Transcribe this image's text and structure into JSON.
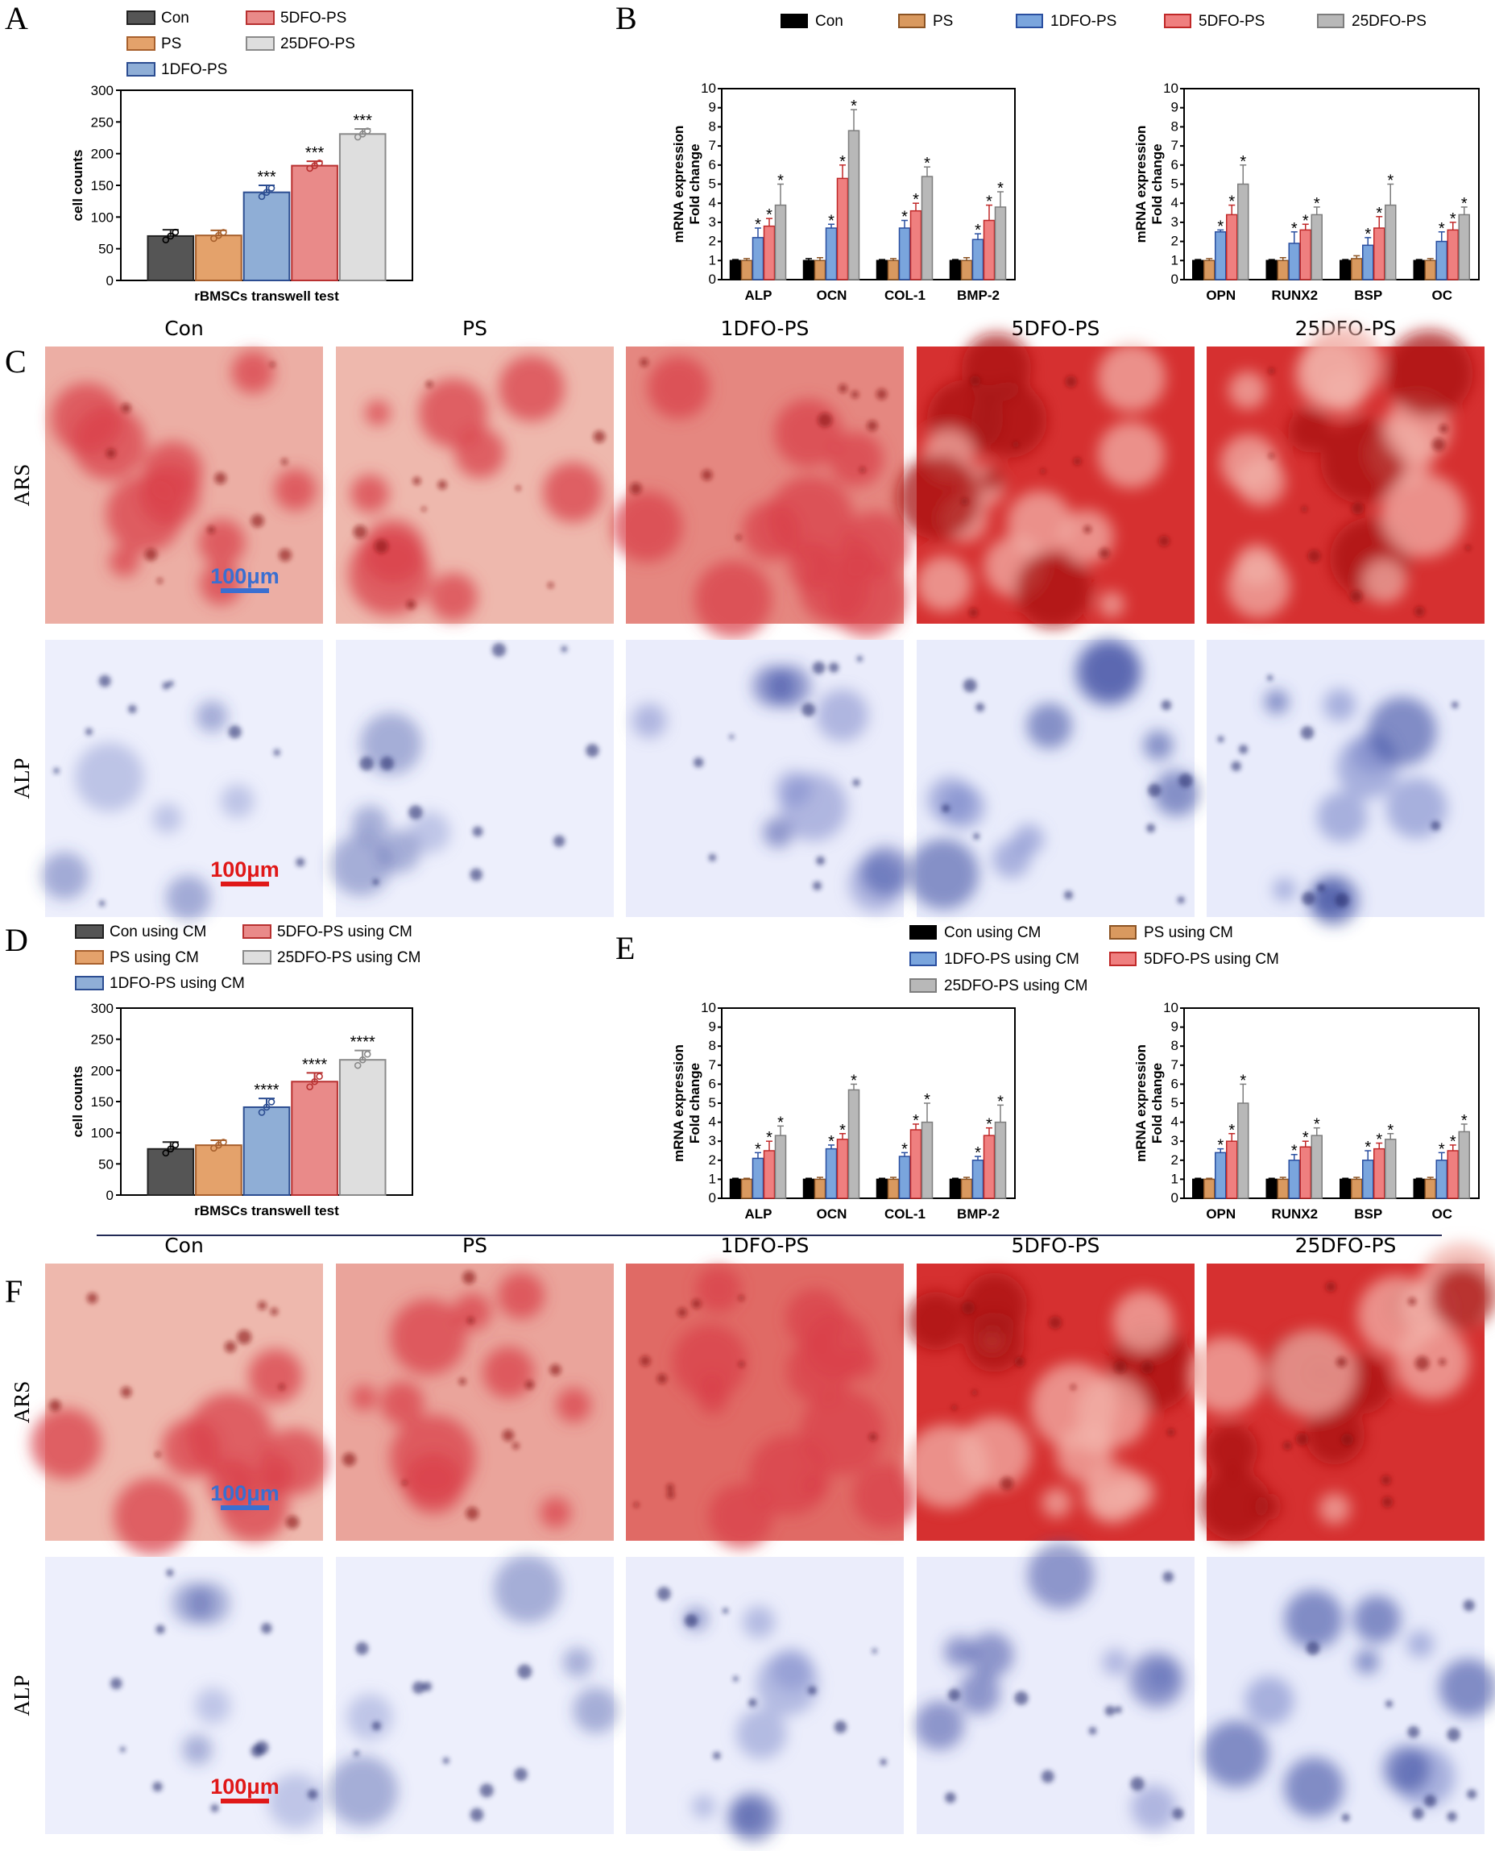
{
  "panels": {
    "A": "A",
    "B": "B",
    "C": "C",
    "D": "D",
    "E": "E",
    "F": "F"
  },
  "colors": {
    "Con": "#555555",
    "PS": "#e4a26b",
    "1DFO-PS": "#8faed6",
    "5DFO-PS": "#e98a89",
    "25DFO-PS": "#dedede",
    "qpcr_Con": "#000000",
    "qpcr_PS": "#d9995f",
    "qpcr_1DFO-PS": "#7aa5dd",
    "qpcr_5DFO-PS": "#ef7f7f",
    "qpcr_25DFO-PS": "#b8b8b8",
    "ars_stain": "#d63a3a",
    "alp_stain": "#2e3f8f",
    "scale_blue": "#3a6fd1",
    "scale_red": "#e01818"
  },
  "chart_data": [
    {
      "id": "A",
      "type": "bar",
      "categories": [
        "Con",
        "PS",
        "1DFO-PS",
        "5DFO-PS",
        "25DFO-PS"
      ],
      "values": [
        70,
        71,
        139,
        181,
        231
      ],
      "errors": [
        10,
        8,
        11,
        7,
        8
      ],
      "annotations": [
        "",
        "",
        "***",
        "***",
        "***"
      ],
      "xlabel": "rBMSCs transwell test",
      "ylabel": "cell counts",
      "ylim": [
        0,
        300
      ],
      "yticks": [
        0,
        50,
        100,
        150,
        200,
        250,
        300
      ],
      "legend": [
        "Con",
        "PS",
        "1DFO-PS",
        "5DFO-PS",
        "25DFO-PS"
      ]
    },
    {
      "id": "B-left",
      "type": "bar",
      "categories": [
        "ALP",
        "OCN",
        "COL-1",
        "BMP-2"
      ],
      "series": [
        {
          "name": "Con",
          "values": [
            1.0,
            1.0,
            1.0,
            1.0
          ]
        },
        {
          "name": "PS",
          "values": [
            1.0,
            1.0,
            1.0,
            1.0
          ]
        },
        {
          "name": "1DFO-PS",
          "values": [
            2.2,
            2.7,
            2.7,
            2.1
          ]
        },
        {
          "name": "5DFO-PS",
          "values": [
            2.8,
            5.3,
            3.6,
            3.1
          ]
        },
        {
          "name": "25DFO-PS",
          "values": [
            3.9,
            7.8,
            5.4,
            3.8
          ]
        }
      ],
      "errors": [
        [
          0.05,
          0.1,
          0.05,
          0.05
        ],
        [
          0.1,
          0.15,
          0.1,
          0.15
        ],
        [
          0.5,
          0.2,
          0.4,
          0.3
        ],
        [
          0.4,
          0.7,
          0.4,
          0.8
        ],
        [
          1.1,
          1.1,
          0.5,
          0.8
        ]
      ],
      "annotations": [
        "*",
        "*",
        "*",
        "*"
      ],
      "ylabel": "mRNA expression\nFold change",
      "ylim": [
        0,
        10
      ]
    },
    {
      "id": "B-right",
      "type": "bar",
      "categories": [
        "OPN",
        "RUNX2",
        "BSP",
        "OC"
      ],
      "series": [
        {
          "name": "Con",
          "values": [
            1.0,
            1.0,
            1.0,
            1.0
          ]
        },
        {
          "name": "PS",
          "values": [
            1.0,
            1.0,
            1.1,
            1.0
          ]
        },
        {
          "name": "1DFO-PS",
          "values": [
            2.5,
            1.9,
            1.8,
            2.0
          ]
        },
        {
          "name": "5DFO-PS",
          "values": [
            3.4,
            2.6,
            2.7,
            2.6
          ]
        },
        {
          "name": "25DFO-PS",
          "values": [
            5.0,
            3.4,
            3.9,
            3.4
          ]
        }
      ],
      "errors": [
        [
          0.05,
          0.05,
          0.05,
          0.05
        ],
        [
          0.1,
          0.15,
          0.15,
          0.1
        ],
        [
          0.1,
          0.6,
          0.4,
          0.5
        ],
        [
          0.5,
          0.3,
          0.6,
          0.4
        ],
        [
          1.0,
          0.4,
          1.1,
          0.4
        ]
      ],
      "annotations": [
        "*",
        "*",
        "*",
        "*"
      ],
      "ylabel": "mRNA expression\nFold change",
      "ylim": [
        0,
        10
      ]
    },
    {
      "id": "D",
      "type": "bar",
      "categories": [
        "Con using CM",
        "PS using CM",
        "1DFO-PS using CM",
        "5DFO-PS using CM",
        "25DFO-PS using CM"
      ],
      "values": [
        74,
        80,
        141,
        182,
        217
      ],
      "errors": [
        11,
        8,
        14,
        14,
        15
      ],
      "annotations": [
        "",
        "",
        "****",
        "****",
        "****"
      ],
      "xlabel": "rBMSCs transwell test",
      "ylabel": "cell counts",
      "ylim": [
        0,
        300
      ],
      "yticks": [
        0,
        50,
        100,
        150,
        200,
        250,
        300
      ],
      "legend": [
        "Con using CM",
        "PS using CM",
        "1DFO-PS using CM",
        "5DFO-PS using CM",
        "25DFO-PS using CM"
      ]
    },
    {
      "id": "E-left",
      "type": "bar",
      "categories": [
        "ALP",
        "OCN",
        "COL-1",
        "BMP-2"
      ],
      "series": [
        {
          "name": "Con using CM",
          "values": [
            1.0,
            1.0,
            1.0,
            1.0
          ]
        },
        {
          "name": "PS using CM",
          "values": [
            1.0,
            1.0,
            1.0,
            1.0
          ]
        },
        {
          "name": "1DFO-PS using CM",
          "values": [
            2.1,
            2.6,
            2.2,
            2.0
          ]
        },
        {
          "name": "5DFO-PS using CM",
          "values": [
            2.5,
            3.1,
            3.6,
            3.3
          ]
        },
        {
          "name": "25DFO-PS using CM",
          "values": [
            3.3,
            5.7,
            4.0,
            4.0
          ]
        }
      ],
      "errors": [
        [
          0.05,
          0.05,
          0.05,
          0.05
        ],
        [
          0.05,
          0.1,
          0.1,
          0.1
        ],
        [
          0.3,
          0.2,
          0.2,
          0.2
        ],
        [
          0.5,
          0.3,
          0.3,
          0.4
        ],
        [
          0.5,
          0.3,
          1.0,
          0.9
        ]
      ],
      "annotations": [
        "*",
        "*",
        "*",
        "*"
      ],
      "ylabel": "mRNA expression\nFold change",
      "ylim": [
        0,
        10
      ]
    },
    {
      "id": "E-right",
      "type": "bar",
      "categories": [
        "OPN",
        "RUNX2",
        "BSP",
        "OC"
      ],
      "series": [
        {
          "name": "Con using CM",
          "values": [
            1.0,
            1.0,
            1.0,
            1.0
          ]
        },
        {
          "name": "PS using CM",
          "values": [
            1.0,
            1.0,
            1.0,
            1.0
          ]
        },
        {
          "name": "1DFO-PS using CM",
          "values": [
            2.4,
            2.0,
            2.0,
            2.0
          ]
        },
        {
          "name": "5DFO-PS using CM",
          "values": [
            3.0,
            2.7,
            2.6,
            2.5
          ]
        },
        {
          "name": "25DFO-PS using CM",
          "values": [
            5.0,
            3.3,
            3.1,
            3.5
          ]
        }
      ],
      "errors": [
        [
          0.05,
          0.05,
          0.05,
          0.05
        ],
        [
          0.05,
          0.1,
          0.1,
          0.1
        ],
        [
          0.2,
          0.3,
          0.5,
          0.4
        ],
        [
          0.4,
          0.3,
          0.3,
          0.3
        ],
        [
          1.0,
          0.4,
          0.3,
          0.4
        ]
      ],
      "annotations": [
        "*",
        "*",
        "*",
        "*"
      ],
      "ylabel": "mRNA expression\nFold change",
      "ylim": [
        0,
        10
      ]
    }
  ],
  "qpcr_legend_top": [
    "Con",
    "PS",
    "1DFO-PS",
    "5DFO-PS",
    "25DFO-PS"
  ],
  "qpcr_legend_bottom": [
    "Con using CM",
    "PS using CM",
    "1DFO-PS using CM",
    "5DFO-PS using CM",
    "25DFO-PS using CM"
  ],
  "image_columns": [
    "Con",
    "PS",
    "1DFO-PS",
    "5DFO-PS",
    "25DFO-PS"
  ],
  "image_rows": [
    "ARS",
    "ALP"
  ],
  "stain_intensity": {
    "C_ARS": [
      0.35,
      0.3,
      0.55,
      1.0,
      1.0
    ],
    "C_ALP": [
      0.15,
      0.12,
      0.45,
      0.55,
      0.6
    ],
    "F_ARS": [
      0.3,
      0.4,
      0.7,
      1.0,
      1.0
    ],
    "F_ALP": [
      0.12,
      0.12,
      0.35,
      0.45,
      0.6
    ]
  },
  "scale_bar": "100μm"
}
